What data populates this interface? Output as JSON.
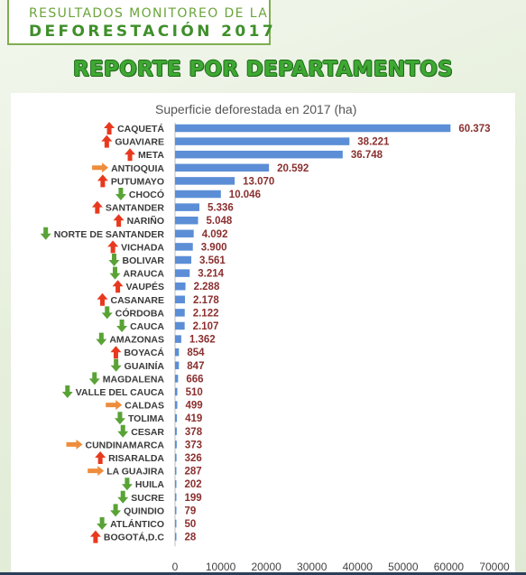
{
  "header": {
    "line1": "RESULTADOS MONITOREO DE LA",
    "line2": "DEFORESTACIÓN 2017"
  },
  "report_title": "REPORTE POR DEPARTAMENTOS",
  "colors": {
    "bar": "#5b8ed6",
    "value_label": "#8b2f2f",
    "arrow_up": "#e8391e",
    "arrow_down": "#59a336",
    "arrow_right": "#ee8d3c"
  },
  "chart_data": {
    "type": "bar",
    "orientation": "horizontal",
    "title": "Superficie deforestada en 2017 (ha)",
    "xlim": [
      0,
      70000
    ],
    "xticks": [
      0,
      10000,
      20000,
      30000,
      40000,
      50000,
      60000,
      70000
    ],
    "grid": false,
    "legend": "none",
    "categories": [
      "CAQUETÁ",
      "GUAVIARE",
      "META",
      "ANTIOQUIA",
      "PUTUMAYO",
      "CHOCÓ",
      "SANTANDER",
      "NARIÑO",
      "NORTE DE SANTANDER",
      "VICHADA",
      "BOLIVAR",
      "ARAUCA",
      "VAUPÉS",
      "CASANARE",
      "CÓRDOBA",
      "CAUCA",
      "AMAZONAS",
      "BOYACÁ",
      "GUAINÍA",
      "MAGDALENA",
      "VALLE DEL CAUCA",
      "CALDAS",
      "TOLIMA",
      "CESAR",
      "CUNDINAMARCA",
      "RISARALDA",
      "LA GUAJIRA",
      "HUILA",
      "SUCRE",
      "QUINDIO",
      "ATLÁNTICO",
      "BOGOTÁ,D.C"
    ],
    "values": [
      60373,
      38221,
      36748,
      20592,
      13070,
      10046,
      5336,
      5048,
      4092,
      3900,
      3561,
      3214,
      2288,
      2178,
      2122,
      2107,
      1362,
      854,
      847,
      666,
      510,
      499,
      419,
      378,
      373,
      326,
      287,
      202,
      199,
      79,
      50,
      28
    ],
    "value_labels": [
      "60.373",
      "38.221",
      "36.748",
      "20.592",
      "13.070",
      "10.046",
      "5.336",
      "5.048",
      "4.092",
      "3.900",
      "3.561",
      "3.214",
      "2.288",
      "2.178",
      "2.122",
      "2.107",
      "1.362",
      "854",
      "847",
      "666",
      "510",
      "499",
      "419",
      "378",
      "373",
      "326",
      "287",
      "202",
      "199",
      "79",
      "50",
      "28"
    ],
    "trend": [
      "up",
      "up",
      "up",
      "right",
      "up",
      "down",
      "up",
      "up",
      "down",
      "up",
      "down",
      "down",
      "up",
      "up",
      "down",
      "down",
      "down",
      "up",
      "down",
      "down",
      "down",
      "right",
      "down",
      "down",
      "right",
      "up",
      "right",
      "down",
      "down",
      "down",
      "down",
      "up"
    ]
  }
}
